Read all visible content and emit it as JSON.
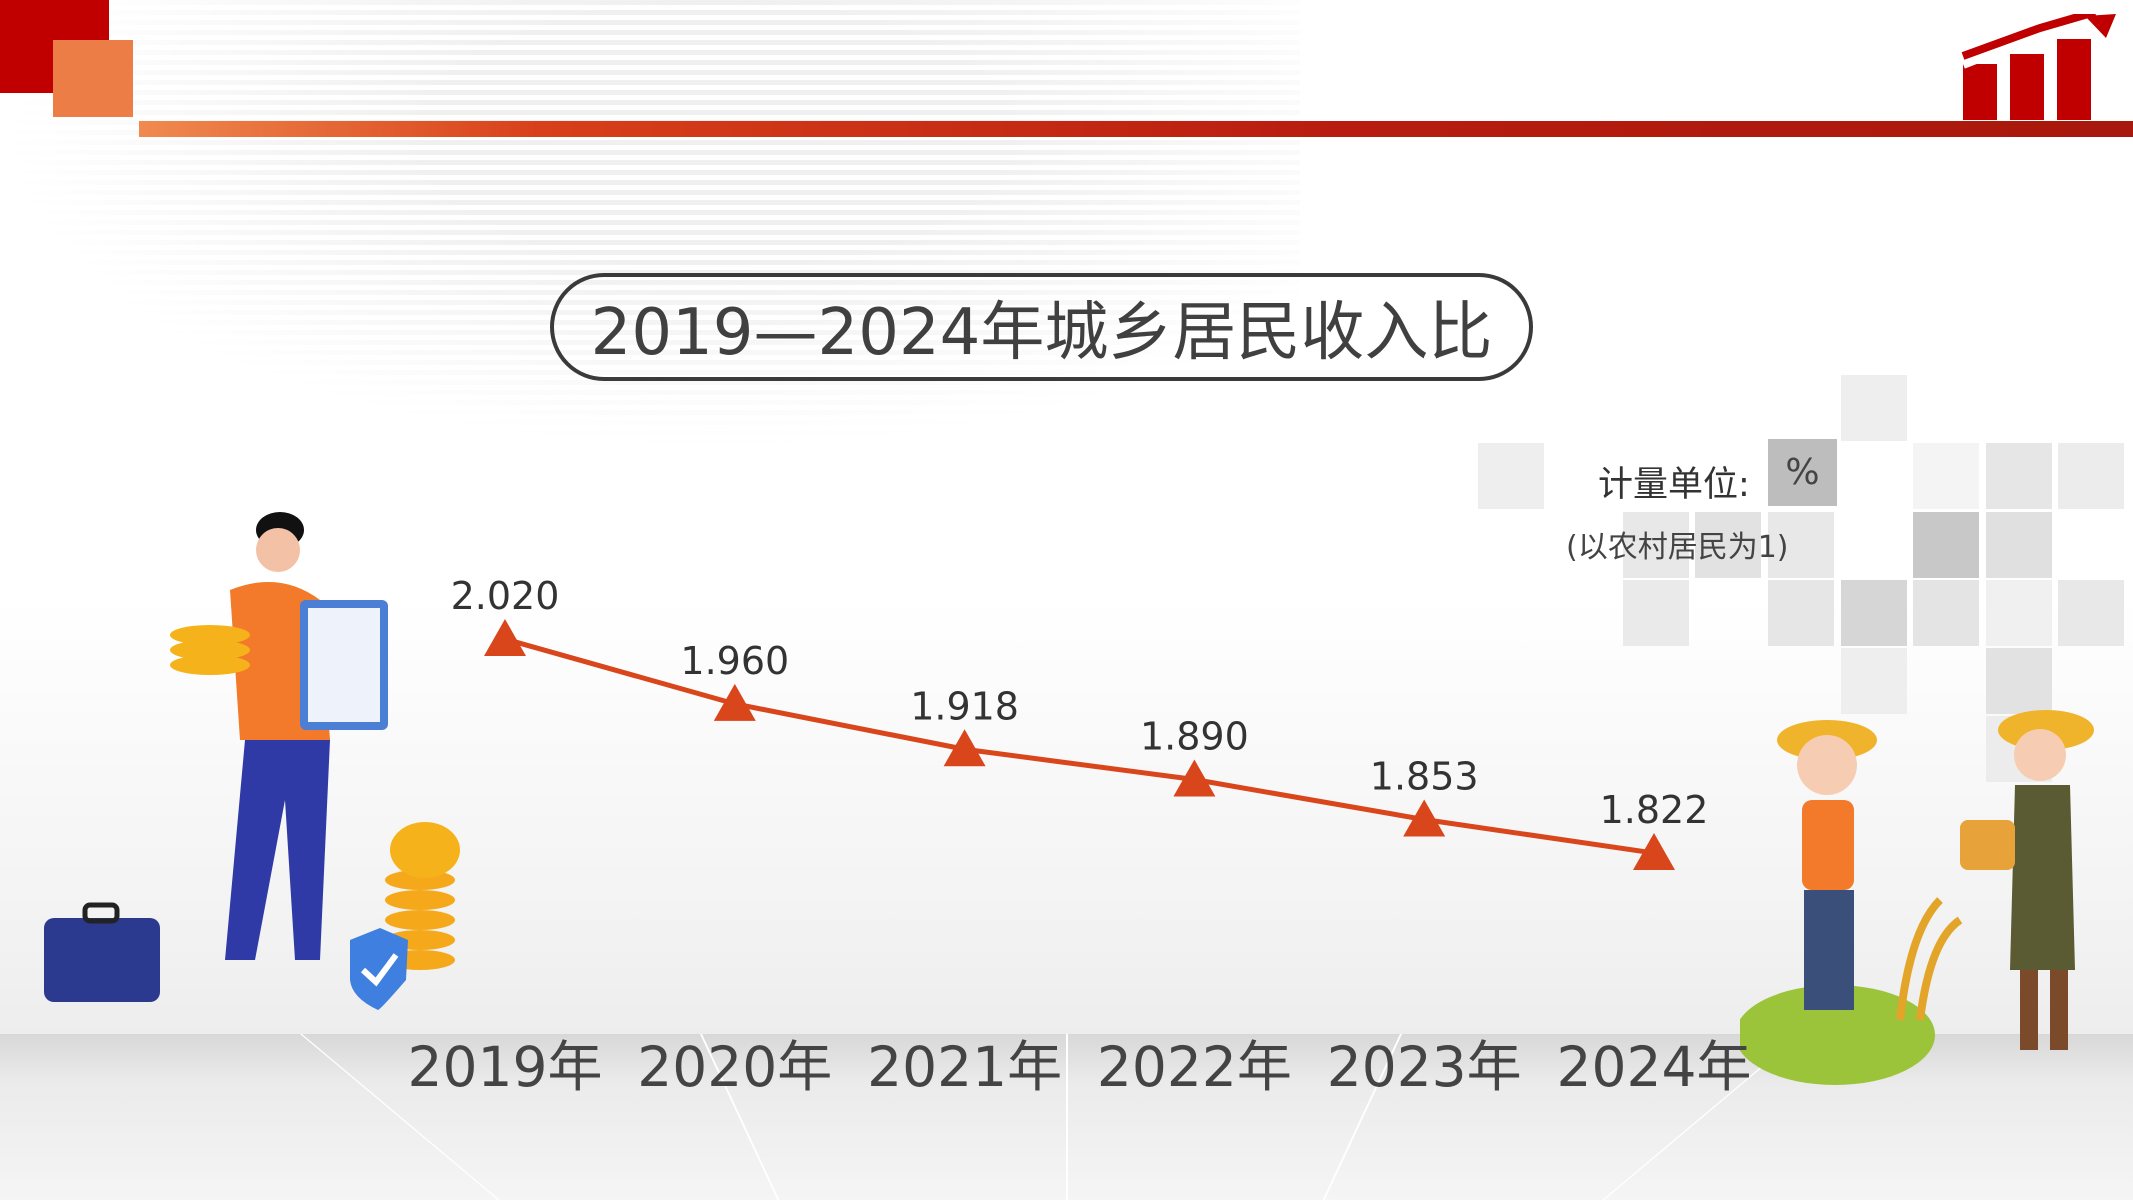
{
  "title": "2019—2024年城乡居民收入比",
  "unit": {
    "label": "计量单位:",
    "value": "%",
    "note": "(以农村居民为1)"
  },
  "colors": {
    "line": "#d9461b",
    "marker": "#d9461b",
    "accent_red": "#c00000",
    "accent_orange": "#ed7d47"
  },
  "chart_data": {
    "type": "line",
    "title": "2019—2024年城乡居民收入比",
    "categories": [
      "2019年",
      "2020年",
      "2021年",
      "2022年",
      "2023年",
      "2024年"
    ],
    "values": [
      2.02,
      1.96,
      1.918,
      1.89,
      1.853,
      1.822
    ],
    "value_labels": [
      "2.020",
      "1.960",
      "1.918",
      "1.890",
      "1.853",
      "1.822"
    ],
    "marker": "triangle",
    "ylabel": "计量单位:%(以农村居民为1)",
    "grid": false,
    "legend": "none"
  }
}
